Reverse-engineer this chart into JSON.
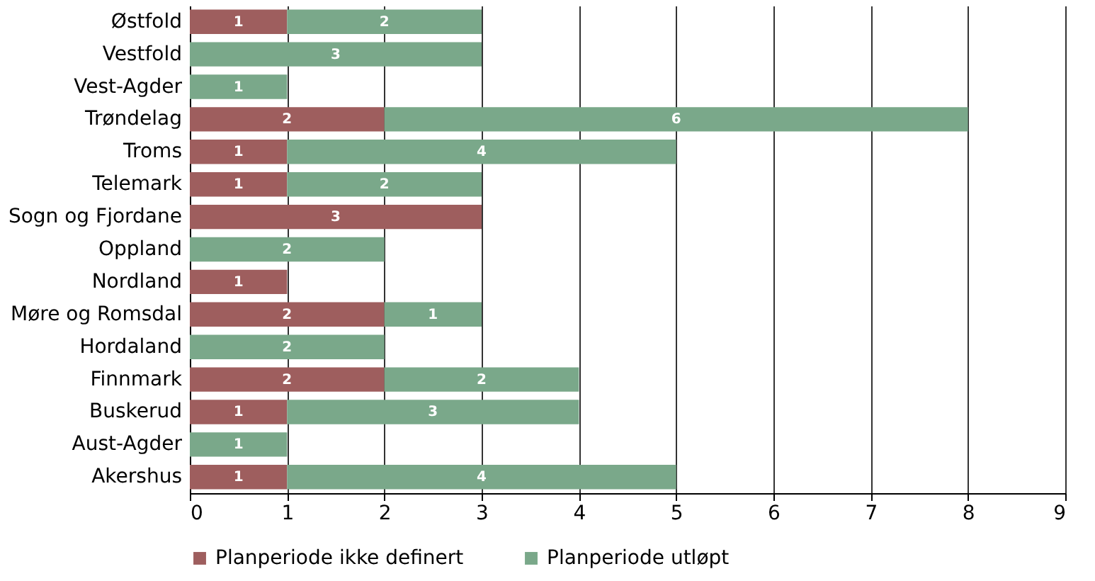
{
  "chart_data": {
    "type": "bar",
    "orientation": "horizontal",
    "stacked": true,
    "categories": [
      "Østfold",
      "Vestfold",
      "Vest-Agder",
      "Trøndelag",
      "Troms",
      "Telemark",
      "Sogn og Fjordane",
      "Oppland",
      "Nordland",
      "Møre og Romsdal",
      "Hordaland",
      "Finnmark",
      "Buskerud",
      "Aust-Agder",
      "Akershus"
    ],
    "series": [
      {
        "name": "Planperiode ikke definert",
        "color": "#9e5e5e",
        "values": [
          1,
          null,
          null,
          2,
          1,
          1,
          3,
          null,
          1,
          2,
          null,
          2,
          1,
          null,
          1
        ]
      },
      {
        "name": "Planperiode utløpt",
        "color": "#7aa88a",
        "values": [
          2,
          3,
          1,
          6,
          4,
          2,
          null,
          2,
          null,
          1,
          2,
          2,
          3,
          1,
          4
        ]
      }
    ],
    "xlim": [
      0,
      9
    ],
    "xticks": [
      0,
      1,
      2,
      3,
      4,
      5,
      6,
      7,
      8,
      9
    ],
    "grid": "x",
    "legend": "bottom",
    "data_labels": true
  }
}
